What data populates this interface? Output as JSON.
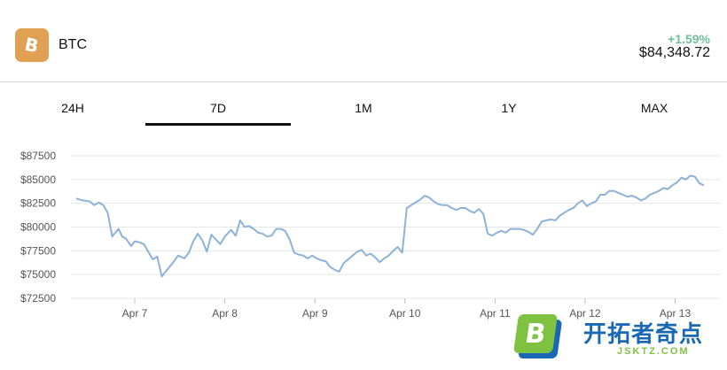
{
  "coin": {
    "icon": "bitcoin-icon",
    "logo_glyph": "B",
    "symbol": "BTC",
    "change": "+1.59%",
    "price": "$84,348.72",
    "change_color": "#6fbf99",
    "brand_color": "#e0a155"
  },
  "tabs": [
    {
      "label": "24H",
      "active": false
    },
    {
      "label": "7D",
      "active": true
    },
    {
      "label": "1M",
      "active": false
    },
    {
      "label": "1Y",
      "active": false
    },
    {
      "label": "MAX",
      "active": false
    }
  ],
  "chart_data": {
    "type": "line",
    "grid": true,
    "line_color": "#8db2d9",
    "ylim": [
      72500,
      87500
    ],
    "y_ticks": [
      "$72500",
      "$75000",
      "$77500",
      "$80000",
      "$82500",
      "$85000",
      "$87500"
    ],
    "y_tick_values": [
      72500,
      75000,
      77500,
      80000,
      82500,
      85000,
      87500
    ],
    "x_ticks": [
      "Apr 7",
      "Apr 8",
      "Apr 9",
      "Apr 10",
      "Apr 11",
      "Apr 12",
      "Apr 13"
    ],
    "x_tick_values": [
      1,
      2,
      3,
      4,
      5,
      6,
      7
    ],
    "xlim": [
      0.35,
      7.35
    ],
    "series": [
      {
        "x": [
          0.35,
          0.42,
          0.5,
          0.55,
          0.6,
          0.65,
          0.7,
          0.75,
          0.82,
          0.86,
          0.9,
          0.96,
          1.0,
          1.05,
          1.1,
          1.15,
          1.2,
          1.25,
          1.3,
          1.35,
          1.42,
          1.48,
          1.55,
          1.6,
          1.65,
          1.7,
          1.75,
          1.8,
          1.85,
          1.9,
          1.95,
          2.0,
          2.02,
          2.07,
          2.12,
          2.17,
          2.22,
          2.27,
          2.32,
          2.37,
          2.42,
          2.47,
          2.52,
          2.57,
          2.62,
          2.67,
          2.72,
          2.77,
          2.82,
          2.87,
          2.92,
          2.97,
          3.02,
          3.07,
          3.12,
          3.17,
          3.22,
          3.27,
          3.32,
          3.37,
          3.42,
          3.47,
          3.52,
          3.57,
          3.62,
          3.67,
          3.72,
          3.77,
          3.82,
          3.87,
          3.92,
          3.97,
          4.02,
          4.07,
          4.12,
          4.17,
          4.22,
          4.27,
          4.32,
          4.37,
          4.42,
          4.47,
          4.52,
          4.57,
          4.62,
          4.67,
          4.72,
          4.77,
          4.82,
          4.87,
          4.92,
          4.97,
          5.02,
          5.07,
          5.12,
          5.17,
          5.22,
          5.27,
          5.32,
          5.37,
          5.42,
          5.47,
          5.52,
          5.57,
          5.62,
          5.67,
          5.72,
          5.77,
          5.82,
          5.87,
          5.92,
          5.97,
          6.02,
          6.07,
          6.12,
          6.17,
          6.22,
          6.27,
          6.32,
          6.37,
          6.42,
          6.47,
          6.52,
          6.57,
          6.62,
          6.67,
          6.72,
          6.77,
          6.82,
          6.87,
          6.92,
          6.97,
          7.02,
          7.07,
          7.12,
          7.17,
          7.22,
          7.27,
          7.32
        ],
        "y": [
          83000,
          82800,
          82700,
          82300,
          82600,
          82300,
          81500,
          79000,
          79800,
          79000,
          78800,
          78000,
          78500,
          78400,
          78200,
          77400,
          76600,
          76900,
          74800,
          75400,
          76200,
          77000,
          76700,
          77300,
          78500,
          79300,
          78600,
          77400,
          79200,
          78700,
          78200,
          79000,
          79200,
          79700,
          79100,
          80700,
          80000,
          80100,
          79800,
          79400,
          79300,
          79000,
          79100,
          79800,
          79800,
          79600,
          78700,
          77300,
          77100,
          77000,
          76700,
          77000,
          76700,
          76500,
          76400,
          75800,
          75500,
          75300,
          76200,
          76600,
          77000,
          77400,
          77600,
          77000,
          77200,
          76800,
          76300,
          76700,
          77000,
          77500,
          77900,
          77300,
          82000,
          82300,
          82600,
          82900,
          83300,
          83100,
          82700,
          82400,
          82300,
          82300,
          82000,
          81800,
          82000,
          82000,
          81700,
          81500,
          81900,
          81400,
          79300,
          79100,
          79400,
          79600,
          79400,
          79800,
          79800,
          79800,
          79700,
          79500,
          79200,
          79800,
          80600,
          80700,
          80800,
          80700,
          81200,
          81500,
          81800,
          82000,
          82500,
          82800,
          82200,
          82500,
          82700,
          83400,
          83400,
          83800,
          83800,
          83600,
          83400,
          83200,
          83300,
          83100,
          82800,
          83000,
          83400,
          83600,
          83800,
          84100,
          84000,
          84400,
          84700,
          85200,
          85000,
          85400,
          85300,
          84600,
          84400
        ]
      }
    ]
  },
  "watermark": {
    "badge_letter": "B",
    "title": "开拓者奇点",
    "subtitle": "JSKTZ.COM",
    "green": "#7fc242",
    "blue": "#1a67b3"
  }
}
